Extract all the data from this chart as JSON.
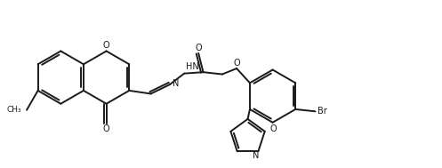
{
  "bg_color": "#ffffff",
  "line_color": "#1a1a1a",
  "line_width": 1.4,
  "figsize": [
    4.97,
    1.89
  ],
  "dpi": 100,
  "xlim": [
    0,
    10
  ],
  "ylim": [
    0,
    3.8
  ]
}
